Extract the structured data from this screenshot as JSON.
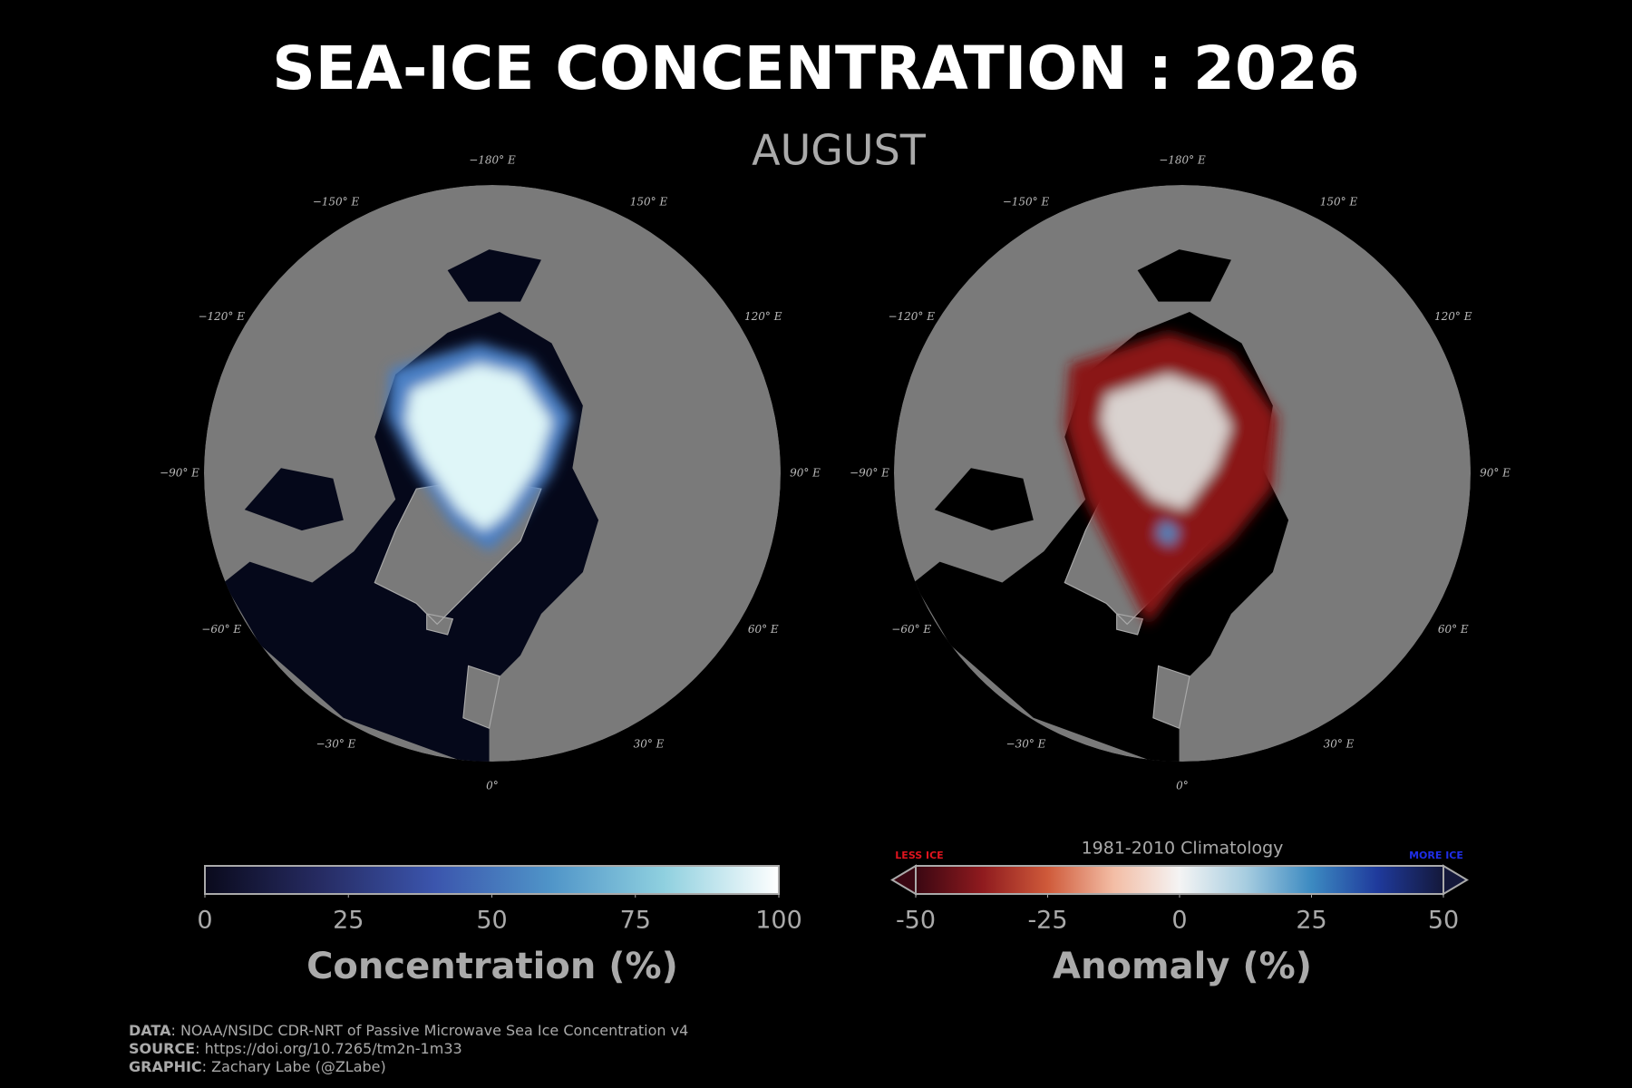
{
  "title": "SEA-ICE CONCENTRATION : 2026",
  "subtitle": "AUGUST",
  "maps": [
    {
      "name": "concentration",
      "lon_labels": [
        "0°",
        "30° E",
        "60° E",
        "90° E",
        "120° E",
        "150° E",
        "−180° E",
        "−150° E",
        "−120° E",
        "−90° E",
        "−60° E",
        "−30° E"
      ]
    },
    {
      "name": "anomaly",
      "lon_labels": [
        "0°",
        "30° E",
        "60° E",
        "90° E",
        "120° E",
        "150° E",
        "−180° E",
        "−150° E",
        "−120° E",
        "−90° E",
        "−60° E",
        "−30° E"
      ]
    }
  ],
  "colorbars": [
    {
      "label": "Concentration (%)",
      "lim": [
        0,
        100
      ],
      "ticks": [
        0,
        25,
        50,
        75,
        100
      ],
      "colors": [
        "#0a0a1c",
        "#262b62",
        "#3b55ad",
        "#4f94c8",
        "#8fd0df",
        "#ffffff"
      ],
      "extend": false
    },
    {
      "label": "Anomaly (%)",
      "title": "1981-2010 Climatology",
      "low_note": "LESS ICE",
      "high_note": "MORE ICE",
      "lim": [
        -50,
        50
      ],
      "ticks": [
        -50,
        -25,
        0,
        25,
        50
      ],
      "colors": [
        "#3a0712",
        "#8e1a1e",
        "#cf5a3a",
        "#f3bda5",
        "#f4f4f4",
        "#a7cde0",
        "#3c8ac1",
        "#1f3a9c",
        "#14183a"
      ],
      "extend": true
    }
  ],
  "credits": [
    {
      "key": "DATA",
      "text": ": NOAA/NSIDC CDR-NRT of Passive Microwave Sea Ice Concentration v4"
    },
    {
      "key": "SOURCE",
      "text": ": https://doi.org/10.7265/tm2n-1m33"
    },
    {
      "key": "GRAPHIC",
      "text": ": Zachary Labe (@ZLabe)"
    }
  ]
}
